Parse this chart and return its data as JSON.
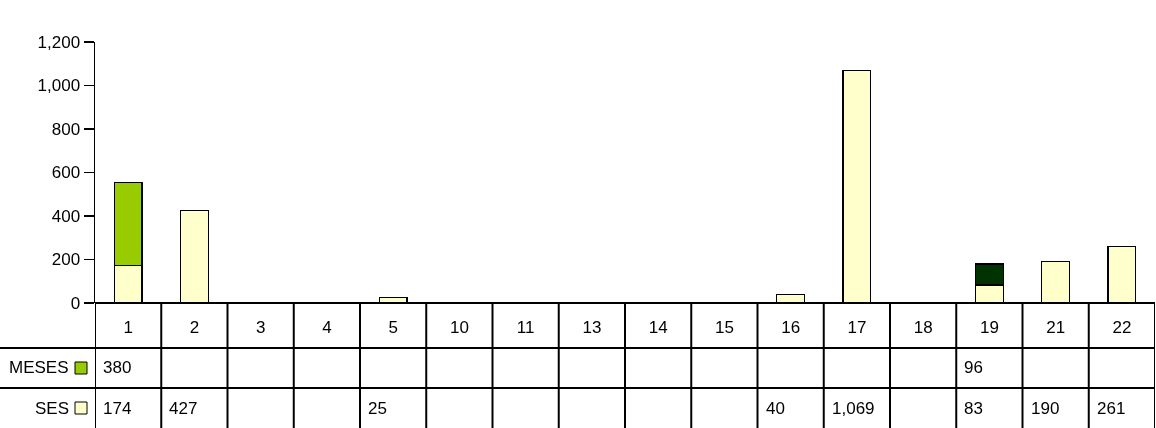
{
  "chart_data": {
    "type": "bar",
    "stacked": true,
    "categories": [
      "1",
      "2",
      "3",
      "4",
      "5",
      "10",
      "11",
      "13",
      "14",
      "15",
      "16",
      "17",
      "18",
      "19",
      "21",
      "22"
    ],
    "series": [
      {
        "name": "SES",
        "color": "#ffffcc",
        "values": [
          174,
          427,
          null,
          null,
          25,
          null,
          null,
          null,
          null,
          null,
          40,
          1069,
          null,
          83,
          190,
          261
        ],
        "value_labels": [
          "174",
          "427",
          null,
          null,
          "25",
          null,
          null,
          null,
          null,
          null,
          "40",
          "1,069",
          null,
          "83",
          "190",
          "261"
        ]
      },
      {
        "name": "MESES",
        "color": "#99cc00",
        "colors": [
          "#99cc00",
          null,
          null,
          null,
          null,
          null,
          null,
          null,
          null,
          null,
          null,
          null,
          null,
          "#003300",
          null,
          null
        ],
        "values": [
          380,
          null,
          null,
          null,
          null,
          null,
          null,
          null,
          null,
          null,
          null,
          null,
          null,
          96,
          null,
          null
        ],
        "value_labels": [
          "380",
          null,
          null,
          null,
          null,
          null,
          null,
          null,
          null,
          null,
          null,
          null,
          null,
          "96",
          null,
          null
        ]
      }
    ],
    "ylim": [
      0,
      1200
    ],
    "yticks": [
      0,
      200,
      400,
      600,
      800,
      {
        "value": 1000,
        "label": "1,000"
      },
      {
        "value": 1200,
        "label": "1,200"
      }
    ],
    "grid": false,
    "legend": "bottom left"
  }
}
